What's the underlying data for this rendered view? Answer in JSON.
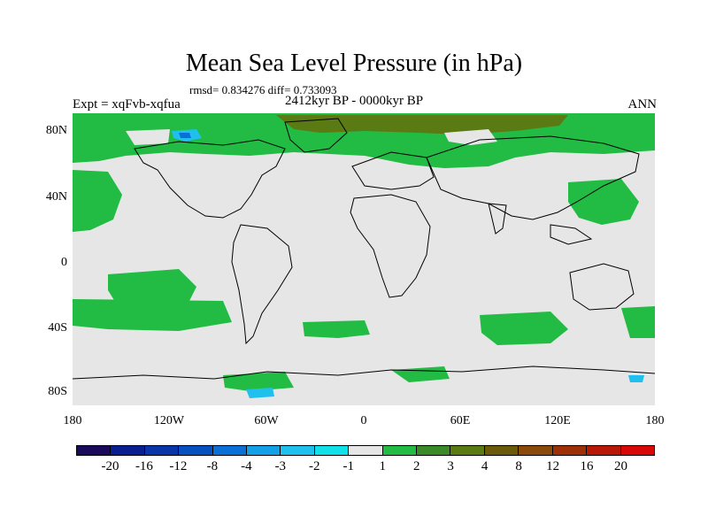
{
  "title": "Mean Sea Level Pressure (in hPa)",
  "stats": "rmsd= 0.834276 diff= 0.733093",
  "expt": "Expt = xqFvb-xqfua",
  "period": "2412kyr BP - 0000kyr BP",
  "season": "ANN",
  "lat_labels": [
    "80N",
    "40N",
    "0",
    "40S",
    "80S"
  ],
  "lon_labels": [
    "180",
    "120W",
    "60W",
    "0",
    "60E",
    "120E",
    "180"
  ],
  "colorbar": {
    "colors": [
      "#1a0a5c",
      "#0a1f8f",
      "#0a35a8",
      "#0650c0",
      "#0a6fd6",
      "#14a0e6",
      "#20c0ee",
      "#10e0e8",
      "#e6e6e6",
      "#22bb44",
      "#3a8a2a",
      "#5a7a14",
      "#6b5a0a",
      "#8a4a0a",
      "#9e3008",
      "#b81808",
      "#d80808"
    ],
    "labels": [
      "-20",
      "-16",
      "-12",
      "-8",
      "-4",
      "-3",
      "-2",
      "-1",
      "1",
      "2",
      "3",
      "4",
      "8",
      "12",
      "16",
      "20"
    ]
  },
  "map_colors": {
    "neutral": "#e6e6e6",
    "green": "#22bb44",
    "olive": "#5a7a14",
    "lightblue": "#20c0ee",
    "blue": "#0a6fd6"
  }
}
